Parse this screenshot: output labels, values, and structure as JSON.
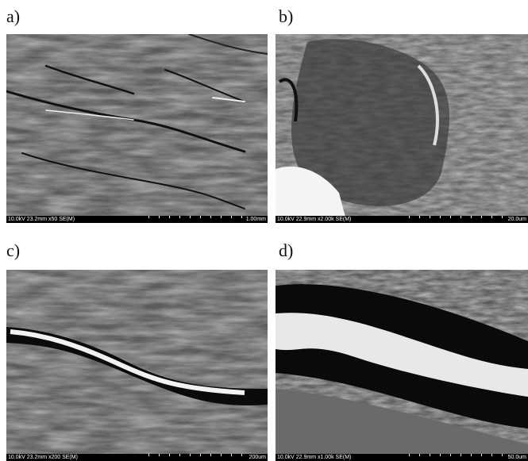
{
  "panels": [
    {
      "label": "a)",
      "info": "10.0kV 23.2mm x50 SE(M)",
      "scale": "1.00mm"
    },
    {
      "label": "b)",
      "info": "10.0kV 22.9mm x2.00k SE(M)",
      "scale": "20.0um"
    },
    {
      "label": "c)",
      "info": "10.0kV 23.2mm x200 SE(M)",
      "scale": "200um"
    },
    {
      "label": "d)",
      "info": "10.0kV 22.9mm x1.00k SE(M)",
      "scale": "50.0um"
    }
  ]
}
